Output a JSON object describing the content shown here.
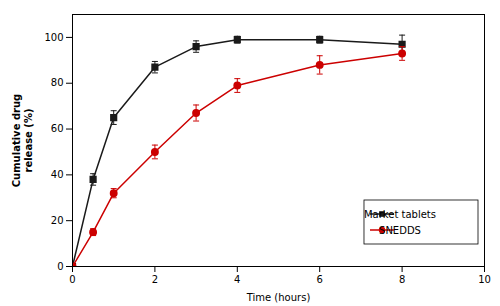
{
  "chart_data": {
    "type": "line",
    "xlabel": "Time (hours)",
    "ylabel": "Cumulative drug\nrelease (%)",
    "x": [
      0,
      0.5,
      1,
      2,
      3,
      4,
      6,
      8
    ],
    "series": [
      {
        "name": "Market tablets",
        "color": "#1a1a1a",
        "marker": "square",
        "values": [
          0,
          38,
          65,
          87,
          96,
          99,
          99,
          97
        ],
        "errors": [
          0,
          2.5,
          3,
          2.5,
          2.5,
          1.5,
          1.5,
          4
        ]
      },
      {
        "name": "SNEDDS",
        "color": "#cc0000",
        "marker": "circle",
        "values": [
          0,
          15,
          32,
          50,
          67,
          79,
          88,
          93
        ],
        "errors": [
          0,
          1.5,
          2,
          3,
          3.5,
          3,
          4,
          3
        ]
      }
    ],
    "xlim": [
      0,
      10
    ],
    "ylim": [
      0,
      110
    ],
    "xticks": [
      0,
      2,
      4,
      6,
      8,
      10
    ],
    "yticks": [
      0,
      20,
      40,
      60,
      80,
      100
    ],
    "grid": false,
    "legend": "lower right"
  }
}
